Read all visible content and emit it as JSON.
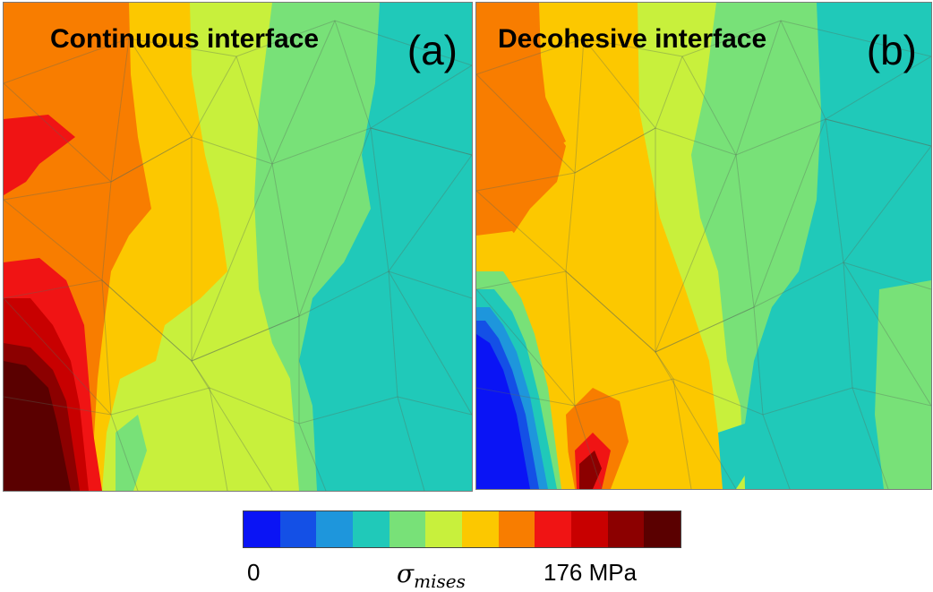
{
  "panels": [
    {
      "title": "Continuous interface",
      "letter": "(a)"
    },
    {
      "title": "Decohesive interface",
      "letter": "(b)"
    }
  ],
  "colorbar": {
    "min_label": "0",
    "max_label": "176 MPa",
    "variable_symbol": "σ",
    "variable_subscript": "mises",
    "colors": [
      "#0a14f5",
      "#1450e6",
      "#1e96dc",
      "#20c9b9",
      "#78e178",
      "#c8f03c",
      "#fcc800",
      "#f87d00",
      "#f01414",
      "#c80000",
      "#8c0000",
      "#5a0000"
    ]
  }
}
